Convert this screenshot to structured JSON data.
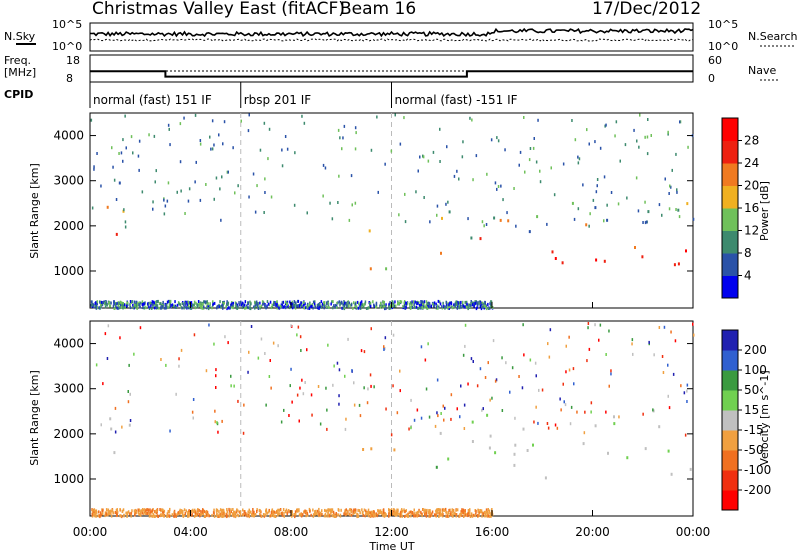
{
  "header": {
    "title": "Christmas Valley East (fitACF)",
    "beam": "Beam 16",
    "date": "17/Dec/2012"
  },
  "panels": {
    "nsky_label": "N.Sky",
    "nsearch_label": "N.Search",
    "freq_label": "Freq.",
    "freq_unit": "[MHz]",
    "nave_label": "Nave",
    "cpid_label": "CPID",
    "nsky_ticks": [
      "10^5",
      "10^0"
    ],
    "nsearch_ticks": [
      "10^5",
      "10^0"
    ],
    "freq_ticks": [
      "18",
      "8"
    ],
    "nave_ticks": [
      "60",
      "0"
    ]
  },
  "cpid_segments": [
    {
      "label": "normal (fast) 151 IF",
      "start": 0,
      "end": 6
    },
    {
      "label": "rbsp 201 IF",
      "start": 6,
      "end": 12
    },
    {
      "label": "normal (fast) -151 IF",
      "start": 12,
      "end": 24
    }
  ],
  "axes": {
    "xlabel": "Time UT",
    "ylabel": "Slant Range [km]",
    "x_ticks": [
      "00:00",
      "04:00",
      "08:00",
      "12:00",
      "16:00",
      "20:00",
      "00:00"
    ],
    "y_ticks": [
      "1000",
      "2000",
      "3000",
      "4000"
    ]
  },
  "colorbars": {
    "power": {
      "label": "Power [dB]",
      "ticks": [
        "28",
        "24",
        "20",
        "16",
        "12",
        "8",
        "4"
      ],
      "colors": [
        "#0000ee",
        "#2a52a8",
        "#3d8a6e",
        "#6fc05a",
        "#f0b020",
        "#f07a20",
        "#ee2010",
        "#ff0000"
      ]
    },
    "velocity": {
      "label": "Velocity [m s^-1]",
      "ticks": [
        "200",
        "100",
        "50",
        "15",
        "-15",
        "-50",
        "-100",
        "-200"
      ],
      "colors": [
        "#2020b0",
        "#3060d0",
        "#3a9a40",
        "#70d050",
        "#c0c0c0",
        "#f0a040",
        "#f07020",
        "#f03010",
        "#ff0000"
      ]
    }
  },
  "chart_data": {
    "type": "heatmap",
    "x_range_hours": [
      0,
      24
    ],
    "y_range_km": [
      180,
      4500
    ],
    "frequency_mhz": [
      {
        "start": 0,
        "end": 3,
        "value": 12
      },
      {
        "start": 3,
        "end": 15,
        "value": 10
      },
      {
        "start": 15,
        "end": 24,
        "value": 12
      }
    ],
    "echo_regions": [
      {
        "t0": 0.2,
        "t1": 1.6,
        "r0": 1600,
        "r1": 3200,
        "power": "high",
        "velocity": "-15 to 15"
      },
      {
        "t0": 8.4,
        "t1": 9.0,
        "r0": 1200,
        "r1": 1700,
        "power": "mid",
        "velocity": "15 to 50"
      },
      {
        "t0": 10.6,
        "t1": 12.3,
        "r0": 1000,
        "r1": 2000,
        "power": "mid",
        "velocity": "-50 to -15"
      },
      {
        "t0": 13.6,
        "t1": 14.7,
        "r0": 900,
        "r1": 2400,
        "power": "mid",
        "velocity": "15 to 50"
      },
      {
        "t0": 14.7,
        "t1": 24.0,
        "r0": 1000,
        "r1": 2600,
        "power": "high",
        "velocity": "-15 to 15"
      }
    ]
  }
}
